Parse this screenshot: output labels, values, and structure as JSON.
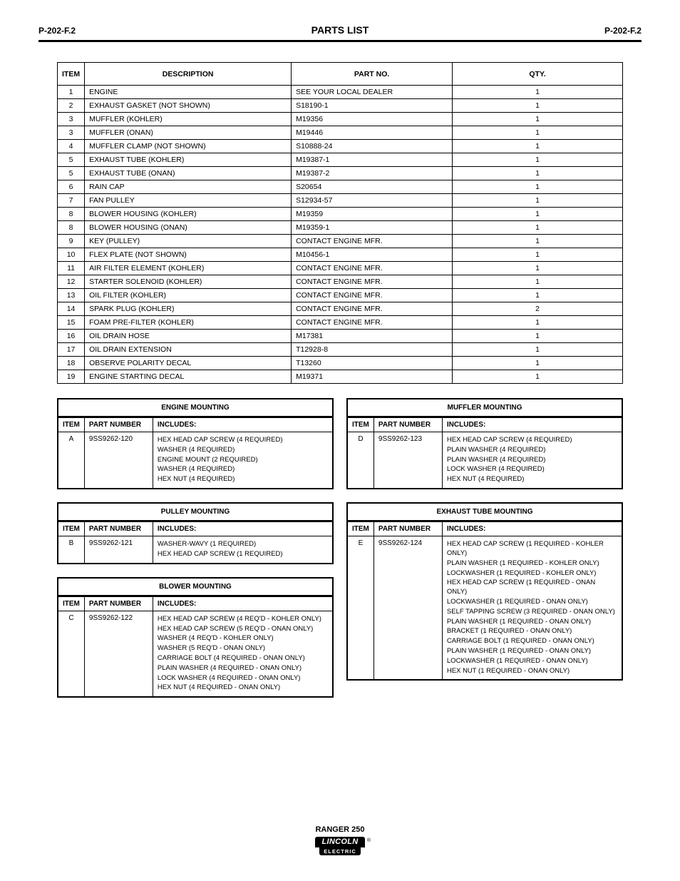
{
  "page": {
    "left_marker": "P-202-F.2",
    "section_title": "PARTS LIST",
    "right_marker": "P-202-F.2",
    "footer_model": "RANGER 250",
    "logo": {
      "top": "LINCOLN",
      "bottom": "ELECTRIC",
      "reg": "®"
    }
  },
  "main_table": {
    "headers": {
      "item": "ITEM",
      "desc": "DESCRIPTION",
      "part": "PART NO.",
      "qty": "QTY."
    },
    "rows": [
      {
        "item": "1",
        "desc": "ENGINE",
        "part": "SEE YOUR LOCAL DEALER",
        "qty": "1"
      },
      {
        "item": "2",
        "desc": "EXHAUST GASKET (NOT SHOWN)",
        "part": "S18190-1",
        "qty": "1"
      },
      {
        "item": "3",
        "desc": "MUFFLER (KOHLER)",
        "part": "M19356",
        "qty": "1"
      },
      {
        "item": "3",
        "desc": "MUFFLER (ONAN)",
        "part": "M19446",
        "qty": "1"
      },
      {
        "item": "4",
        "desc": "MUFFLER CLAMP (NOT SHOWN)",
        "part": "S10888-24",
        "qty": "1"
      },
      {
        "item": "5",
        "desc": "EXHAUST TUBE (KOHLER)",
        "part": "M19387-1",
        "qty": "1"
      },
      {
        "item": "5",
        "desc": "EXHAUST TUBE (ONAN)",
        "part": "M19387-2",
        "qty": "1"
      },
      {
        "item": "6",
        "desc": "RAIN CAP",
        "part": "S20654",
        "qty": "1"
      },
      {
        "item": "7",
        "desc": "FAN PULLEY",
        "part": "S12934-57",
        "qty": "1"
      },
      {
        "item": "8",
        "desc": "BLOWER HOUSING (KOHLER)",
        "part": "M19359",
        "qty": "1"
      },
      {
        "item": "8",
        "desc": "BLOWER HOUSING (ONAN)",
        "part": "M19359-1",
        "qty": "1"
      },
      {
        "item": "9",
        "desc": "KEY (PULLEY)",
        "part": "CONTACT ENGINE MFR.",
        "qty": "1"
      },
      {
        "item": "10",
        "desc": "FLEX PLATE (NOT SHOWN)",
        "part": "M10456-1",
        "qty": "1"
      },
      {
        "item": "11",
        "desc": "AIR FILTER ELEMENT (KOHLER)",
        "part": "CONTACT ENGINE MFR.",
        "qty": "1"
      },
      {
        "item": "12",
        "desc": "STARTER SOLENOID (KOHLER)",
        "part": "CONTACT ENGINE MFR.",
        "qty": "1"
      },
      {
        "item": "13",
        "desc": "OIL FILTER (KOHLER)",
        "part": "CONTACT ENGINE MFR.",
        "qty": "1"
      },
      {
        "item": "14",
        "desc": "SPARK PLUG (KOHLER)",
        "part": "CONTACT ENGINE MFR.",
        "qty": "2"
      },
      {
        "item": "15",
        "desc": "FOAM PRE-FILTER (KOHLER)",
        "part": "CONTACT ENGINE MFR.",
        "qty": "1"
      },
      {
        "item": "16",
        "desc": "OIL DRAIN HOSE",
        "part": "M17381",
        "qty": "1"
      },
      {
        "item": "17",
        "desc": "OIL DRAIN EXTENSION",
        "part": "T12928-8",
        "qty": "1"
      },
      {
        "item": "18",
        "desc": "OBSERVE POLARITY DECAL",
        "part": "T13260",
        "qty": "1"
      },
      {
        "item": "19",
        "desc": "ENGINE STARTING DECAL",
        "part": "M19371",
        "qty": "1"
      }
    ]
  },
  "sub_tables": {
    "engine_mount": {
      "title": "ENGINE MOUNTING",
      "headers": {
        "item": "ITEM",
        "part": "PART NUMBER",
        "includes": "INCLUDES:"
      },
      "rows": [
        {
          "item": "A",
          "part": "9SS9262-120",
          "includes": [
            "HEX HEAD CAP SCREW (4 REQUIRED)",
            "WASHER (4 REQUIRED)",
            "ENGINE MOUNT (2 REQUIRED)",
            "WASHER (4 REQUIRED)",
            "HEX NUT (4 REQUIRED)"
          ]
        }
      ]
    },
    "pulley_mount": {
      "title": "PULLEY MOUNTING",
      "headers": {
        "item": "ITEM",
        "part": "PART NUMBER",
        "includes": "INCLUDES:"
      },
      "rows": [
        {
          "item": "B",
          "part": "9SS9262-121",
          "includes": [
            "WASHER-WAVY (1 REQUIRED)",
            "HEX HEAD CAP SCREW (1 REQUIRED)"
          ]
        }
      ]
    },
    "blower_mount": {
      "title": "BLOWER MOUNTING",
      "headers": {
        "item": "ITEM",
        "part": "PART NUMBER",
        "includes": "INCLUDES:"
      },
      "rows": [
        {
          "item": "C",
          "part": "9SS9262-122",
          "includes": [
            "HEX HEAD CAP SCREW (4 REQ'D - KOHLER ONLY)",
            "HEX HEAD CAP SCREW (5 REQ'D - ONAN ONLY)",
            "WASHER (4 REQ'D - KOHLER ONLY)",
            "WASHER (5 REQ'D - ONAN ONLY)",
            "CARRIAGE BOLT (4 REQUIRED - ONAN ONLY)",
            "PLAIN WASHER (4 REQUIRED - ONAN ONLY)",
            "LOCK WASHER (4 REQUIRED - ONAN ONLY)",
            "HEX NUT (4 REQUIRED - ONAN ONLY)"
          ]
        }
      ]
    },
    "muffler_mount": {
      "title": "MUFFLER MOUNTING",
      "headers": {
        "item": "ITEM",
        "part": "PART NUMBER",
        "includes": "INCLUDES:"
      },
      "rows": [
        {
          "item": "D",
          "part": "9SS9262-123",
          "includes": [
            "HEX HEAD CAP SCREW (4 REQUIRED)",
            "PLAIN WASHER (4 REQUIRED)",
            "PLAIN WASHER (4 REQUIRED)",
            "LOCK WASHER (4 REQUIRED)",
            "HEX NUT (4 REQUIRED)"
          ]
        }
      ]
    },
    "exhaust_tube": {
      "title": "EXHAUST TUBE MOUNTING",
      "headers": {
        "item": "ITEM",
        "part": "PART NUMBER",
        "includes": "INCLUDES:"
      },
      "rows": [
        {
          "item": "E",
          "part": "9SS9262-124",
          "includes": [
            "HEX HEAD CAP SCREW (1 REQUIRED - KOHLER ONLY)",
            "PLAIN WASHER (1 REQUIRED - KOHLER ONLY)",
            "LOCKWASHER (1 REQUIRED - KOHLER ONLY)",
            "HEX HEAD CAP SCREW (1 REQUIRED - ONAN ONLY)",
            "LOCKWASHER (1 REQUIRED - ONAN ONLY)",
            "SELF TAPPING SCREW (3 REQUIRED - ONAN ONLY)",
            "PLAIN WASHER (1 REQUIRED - ONAN ONLY)",
            "BRACKET (1 REQUIRED - ONAN ONLY)",
            "CARRIAGE BOLT (1 REQUIRED - ONAN ONLY)",
            "PLAIN WASHER (1 REQUIRED - ONAN ONLY)",
            "LOCKWASHER (1 REQUIRED - ONAN ONLY)",
            "HEX NUT (1 REQUIRED - ONAN ONLY)"
          ]
        }
      ]
    }
  }
}
